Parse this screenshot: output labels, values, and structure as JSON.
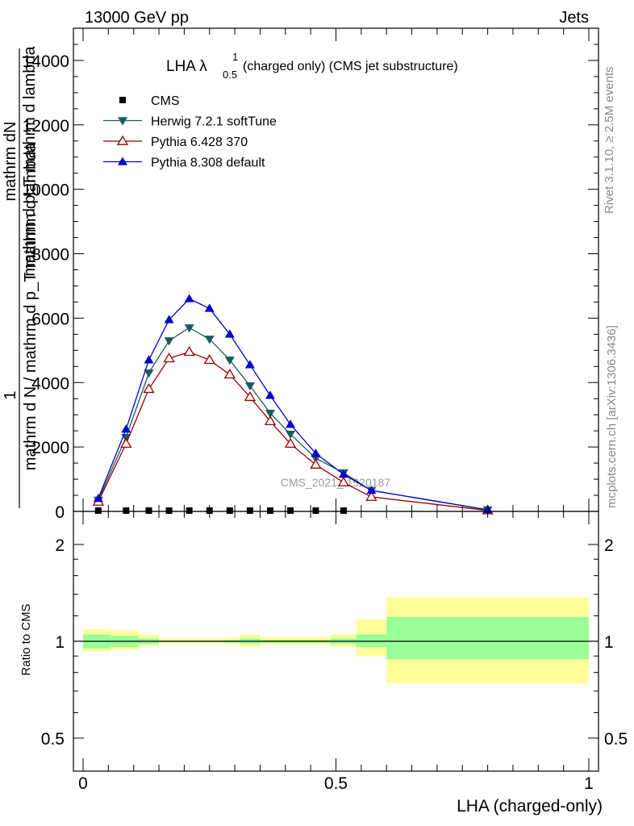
{
  "header": {
    "left": "13000 GeV pp",
    "right": "Jets"
  },
  "title": {
    "main": "LHA λ",
    "sup": "1",
    "sub": "0.5",
    "rest": "(charged only) (CMS jet substructure)"
  },
  "side_labels": {
    "rivet": "Rivet 3.1.10, ≥ 2.5M events",
    "mcplots": "mcplots.cern.ch [arXiv:1306.3436]"
  },
  "watermark": "CMS_2021_I1920187",
  "legend": [
    {
      "name": "CMS",
      "color": "#000000",
      "marker": "square"
    },
    {
      "name": "Herwig 7.2.1 softTune",
      "color": "#1a5c5c",
      "marker": "triangle-down"
    },
    {
      "name": "Pythia 6.428 370",
      "color": "#990000",
      "marker": "triangle-open"
    },
    {
      "name": "Pythia 8.308 default",
      "color": "#0000cc",
      "marker": "triangle-up"
    }
  ],
  "chart_data": [
    {
      "type": "line",
      "panel": "main",
      "ylabel_top_left": "1",
      "ylabel_top_main": "mathrm dN",
      "ylabel_bottom": "mathrm d N / mathrm d p_T mathrm d lambda",
      "ylabel_overlay": "mathrm d p_T mathrm d lambda",
      "xlim": [
        0,
        1
      ],
      "ylim": [
        0,
        15000
      ],
      "yticks": [
        2000,
        4000,
        6000,
        8000,
        10000,
        12000,
        14000
      ],
      "ytick_labels": [
        "2000",
        "4000",
        "6000",
        "8000",
        "10000",
        "12000",
        "14000"
      ],
      "x": [
        0.03,
        0.085,
        0.13,
        0.17,
        0.21,
        0.25,
        0.29,
        0.33,
        0.37,
        0.41,
        0.46,
        0.515,
        0.57,
        0.8
      ],
      "series": [
        {
          "name": "CMS",
          "values": [
            10,
            10,
            10,
            10,
            10,
            10,
            10,
            10,
            10,
            10,
            10,
            10,
            null,
            null
          ]
        },
        {
          "name": "Herwig 7.2.1 softTune",
          "values": [
            350,
            2300,
            4300,
            5300,
            5700,
            5350,
            4700,
            3900,
            3050,
            2400,
            1650,
            1200,
            650,
            50
          ]
        },
        {
          "name": "Pythia 6.428 370",
          "values": [
            300,
            2100,
            3800,
            4750,
            4950,
            4700,
            4250,
            3550,
            2800,
            2100,
            1450,
            900,
            450,
            30
          ]
        },
        {
          "name": "Pythia 8.308 default",
          "values": [
            400,
            2550,
            4700,
            5950,
            6600,
            6300,
            5500,
            4550,
            3600,
            2700,
            1800,
            1150,
            650,
            50
          ]
        }
      ]
    },
    {
      "type": "area",
      "panel": "ratio",
      "ylabel": "Ratio to CMS",
      "xlabel": "LHA (charged-only)",
      "xlim": [
        0,
        1
      ],
      "ylim": [
        0.4,
        2.3
      ],
      "yticks": [
        0.5,
        1,
        2
      ],
      "ytick_labels": [
        "0.5",
        "1",
        "2"
      ],
      "xticks": [
        0,
        0.5,
        1
      ],
      "xtick_labels": [
        "0",
        "0.5",
        "1"
      ],
      "bins": [
        {
          "x0": 0.0,
          "x1": 0.055,
          "in_lo": 0.95,
          "in_hi": 1.05,
          "out_lo": 0.93,
          "out_hi": 1.09
        },
        {
          "x0": 0.055,
          "x1": 0.11,
          "in_lo": 0.96,
          "in_hi": 1.04,
          "out_lo": 0.94,
          "out_hi": 1.08
        },
        {
          "x0": 0.11,
          "x1": 0.15,
          "in_lo": 0.98,
          "in_hi": 1.02,
          "out_lo": 0.97,
          "out_hi": 1.05
        },
        {
          "x0": 0.15,
          "x1": 0.28,
          "in_lo": 0.995,
          "in_hi": 1.005,
          "out_lo": 0.985,
          "out_hi": 1.02
        },
        {
          "x0": 0.28,
          "x1": 0.31,
          "in_lo": 0.99,
          "in_hi": 1.01,
          "out_lo": 0.98,
          "out_hi": 1.025
        },
        {
          "x0": 0.31,
          "x1": 0.35,
          "in_lo": 0.98,
          "in_hi": 1.02,
          "out_lo": 0.96,
          "out_hi": 1.05
        },
        {
          "x0": 0.35,
          "x1": 0.49,
          "in_lo": 0.99,
          "in_hi": 1.01,
          "out_lo": 0.975,
          "out_hi": 1.03
        },
        {
          "x0": 0.49,
          "x1": 0.54,
          "in_lo": 0.98,
          "in_hi": 1.02,
          "out_lo": 0.96,
          "out_hi": 1.05
        },
        {
          "x0": 0.54,
          "x1": 0.6,
          "in_lo": 0.96,
          "in_hi": 1.05,
          "out_lo": 0.9,
          "out_hi": 1.17
        },
        {
          "x0": 0.6,
          "x1": 1.0,
          "in_lo": 0.88,
          "in_hi": 1.19,
          "out_lo": 0.74,
          "out_hi": 1.37
        }
      ],
      "band_colors": {
        "inner": "#99ff99",
        "outer": "#ffff99"
      }
    }
  ]
}
